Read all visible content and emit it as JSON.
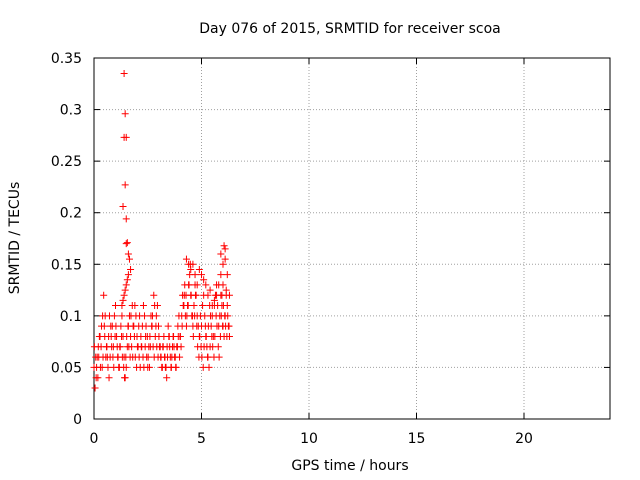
{
  "chart_data": {
    "type": "scatter",
    "title": "Day 076 of 2015, SRMTID for receiver scoa",
    "xlabel": "GPS time / hours",
    "ylabel": "SRMTID / TECUs",
    "xlim": [
      0,
      24
    ],
    "ylim": [
      0,
      0.35
    ],
    "xticks": [
      0,
      5,
      10,
      15,
      20
    ],
    "xtick_labels": [
      "0",
      "5",
      "10",
      "15",
      "20"
    ],
    "yticks": [
      0,
      0.05,
      0.1,
      0.15,
      0.2,
      0.25,
      0.3,
      0.35
    ],
    "ytick_labels": [
      "0",
      "0.05",
      "0.1",
      "0.15",
      "0.2",
      "0.25",
      "0.3",
      "0.35"
    ],
    "grid": true,
    "marker": "+",
    "series": [
      {
        "name": "SRMTID",
        "color": "#ff0000",
        "x": [
          0.0,
          0.05,
          0.1,
          0.15,
          0.2,
          0.25,
          0.3,
          0.35,
          0.4,
          0.45,
          0.5,
          0.55,
          0.6,
          0.65,
          0.7,
          0.75,
          0.8,
          0.85,
          0.9,
          0.95,
          1.0,
          1.05,
          1.1,
          1.15,
          1.2,
          1.25,
          1.3,
          1.35,
          1.4,
          1.45,
          1.5,
          1.55,
          1.6,
          1.65,
          1.7,
          1.75,
          1.8,
          1.85,
          1.9,
          1.95,
          2.0,
          2.05,
          2.1,
          2.15,
          2.2,
          2.25,
          2.3,
          2.35,
          2.4,
          2.45,
          2.5,
          2.55,
          2.6,
          2.65,
          2.7,
          2.75,
          2.8,
          2.85,
          2.9,
          2.95,
          3.0,
          3.05,
          3.1,
          3.15,
          3.2,
          3.25,
          3.3,
          3.35,
          3.4,
          3.45,
          3.5,
          3.55,
          3.6,
          3.65,
          3.7,
          3.75,
          3.8,
          3.85,
          3.9,
          3.95,
          4.0,
          4.05,
          4.1,
          4.15,
          4.2,
          4.25,
          4.3,
          4.35,
          4.4,
          4.45,
          4.5,
          4.55,
          4.6,
          4.65,
          4.7,
          4.75,
          4.8,
          4.85,
          4.9,
          4.95,
          5.0,
          5.05,
          5.1,
          5.15,
          5.2,
          5.25,
          5.3,
          5.35,
          5.4,
          5.45,
          5.5,
          5.55,
          5.6,
          5.65,
          5.7,
          5.75,
          5.8,
          5.85,
          5.9,
          5.95,
          6.0,
          6.05,
          6.1,
          6.15,
          6.2,
          6.25,
          6.3,
          0.02,
          0.08,
          0.12,
          0.18,
          0.22,
          0.28,
          0.33,
          0.38,
          0.42,
          0.48,
          0.52,
          0.58,
          0.62,
          0.68,
          0.72,
          0.78,
          0.82,
          0.88,
          0.92,
          0.98,
          1.02,
          1.08,
          1.12,
          1.18,
          1.22,
          1.28,
          1.32,
          1.38,
          1.42,
          1.48,
          1.52,
          1.58,
          1.62,
          1.68,
          1.72,
          1.78,
          1.82,
          1.88,
          1.92,
          1.98,
          2.02,
          2.08,
          2.12,
          2.18,
          2.22,
          2.28,
          2.32,
          2.38,
          2.42,
          2.48,
          2.52,
          2.58,
          2.62,
          2.68,
          2.72,
          2.78,
          2.82,
          2.88,
          2.92,
          2.98,
          3.02,
          3.08,
          3.12,
          3.18,
          3.22,
          3.28,
          3.32,
          3.38,
          3.42,
          3.48,
          3.52,
          3.58,
          3.62,
          3.68,
          3.72,
          3.78,
          3.82,
          3.88,
          3.92,
          3.98,
          4.02,
          4.08,
          4.12,
          4.18,
          4.22,
          4.28,
          4.32,
          4.38,
          4.42,
          4.48,
          4.52,
          4.58,
          4.62,
          4.68,
          4.72,
          4.78,
          4.82,
          4.88,
          4.92,
          4.98,
          5.02,
          5.08,
          5.12,
          5.18,
          5.22,
          5.28,
          5.32,
          5.38,
          5.42,
          5.48,
          5.52,
          5.58,
          5.62,
          5.68,
          5.72,
          5.78,
          5.82,
          5.88,
          5.92,
          5.98,
          6.02,
          6.08,
          6.12,
          6.18,
          6.22,
          6.28,
          1.4,
          1.45,
          1.4,
          1.5,
          1.45,
          1.35,
          1.5,
          1.55,
          1.5,
          1.6,
          1.65,
          1.7,
          1.6,
          1.55,
          1.5,
          1.45,
          1.4,
          1.35,
          1.3,
          4.3,
          4.4,
          4.5,
          4.6,
          4.7,
          4.8,
          4.9,
          5.0,
          5.1,
          5.2,
          5.3,
          5.4,
          5.5,
          5.6,
          5.7,
          5.8,
          5.9,
          6.0,
          6.1,
          6.2,
          6.3,
          5.9,
          6.05,
          6.1,
          6.0,
          6.15,
          5.95
        ],
        "y": [
          0.05,
          0.03,
          0.04,
          0.06,
          0.07,
          0.08,
          0.05,
          0.09,
          0.1,
          0.12,
          0.08,
          0.06,
          0.07,
          0.05,
          0.04,
          0.06,
          0.08,
          0.09,
          0.07,
          0.1,
          0.11,
          0.08,
          0.06,
          0.05,
          0.07,
          0.09,
          0.1,
          0.08,
          0.06,
          0.04,
          0.05,
          0.07,
          0.09,
          0.1,
          0.08,
          0.07,
          0.06,
          0.09,
          0.11,
          0.1,
          0.08,
          0.07,
          0.06,
          0.05,
          0.07,
          0.09,
          0.11,
          0.1,
          0.08,
          0.06,
          0.05,
          0.07,
          0.08,
          0.1,
          0.09,
          0.07,
          0.06,
          0.08,
          0.1,
          0.11,
          0.09,
          0.07,
          0.06,
          0.05,
          0.07,
          0.08,
          0.06,
          0.05,
          0.07,
          0.09,
          0.08,
          0.06,
          0.05,
          0.07,
          0.08,
          0.06,
          0.05,
          0.07,
          0.09,
          0.1,
          0.08,
          0.07,
          0.09,
          0.11,
          0.12,
          0.1,
          0.09,
          0.11,
          0.13,
          0.14,
          0.12,
          0.1,
          0.09,
          0.11,
          0.13,
          0.12,
          0.1,
          0.09,
          0.08,
          0.1,
          0.09,
          0.11,
          0.12,
          0.1,
          0.08,
          0.07,
          0.06,
          0.05,
          0.07,
          0.09,
          0.1,
          0.08,
          0.11,
          0.12,
          0.13,
          0.11,
          0.09,
          0.1,
          0.12,
          0.11,
          0.09,
          0.08,
          0.1,
          0.12,
          0.11,
          0.09,
          0.08,
          0.07,
          0.06,
          0.05,
          0.04,
          0.06,
          0.08,
          0.07,
          0.05,
          0.06,
          0.09,
          0.1,
          0.07,
          0.06,
          0.08,
          0.1,
          0.09,
          0.07,
          0.06,
          0.05,
          0.08,
          0.09,
          0.07,
          0.06,
          0.05,
          0.07,
          0.08,
          0.06,
          0.05,
          0.04,
          0.06,
          0.08,
          0.09,
          0.07,
          0.06,
          0.1,
          0.11,
          0.09,
          0.08,
          0.06,
          0.05,
          0.07,
          0.09,
          0.1,
          0.08,
          0.07,
          0.06,
          0.05,
          0.07,
          0.09,
          0.08,
          0.06,
          0.05,
          0.07,
          0.09,
          0.1,
          0.12,
          0.11,
          0.09,
          0.07,
          0.06,
          0.08,
          0.07,
          0.06,
          0.05,
          0.07,
          0.06,
          0.05,
          0.04,
          0.06,
          0.08,
          0.07,
          0.05,
          0.06,
          0.08,
          0.07,
          0.06,
          0.05,
          0.07,
          0.08,
          0.06,
          0.08,
          0.1,
          0.12,
          0.11,
          0.13,
          0.12,
          0.1,
          0.11,
          0.13,
          0.15,
          0.12,
          0.1,
          0.08,
          0.1,
          0.12,
          0.09,
          0.07,
          0.06,
          0.08,
          0.07,
          0.06,
          0.05,
          0.07,
          0.09,
          0.08,
          0.06,
          0.09,
          0.11,
          0.1,
          0.08,
          0.07,
          0.06,
          0.08,
          0.1,
          0.09,
          0.07,
          0.06,
          0.08,
          0.1,
          0.09,
          0.11,
          0.1,
          0.09,
          0.08,
          0.1,
          0.09,
          0.335,
          0.296,
          0.273,
          0.273,
          0.227,
          0.206,
          0.194,
          0.171,
          0.17,
          0.16,
          0.155,
          0.145,
          0.14,
          0.135,
          0.13,
          0.125,
          0.12,
          0.115,
          0.11,
          0.155,
          0.15,
          0.145,
          0.15,
          0.14,
          0.13,
          0.145,
          0.14,
          0.135,
          0.13,
          0.12,
          0.125,
          0.11,
          0.115,
          0.12,
          0.13,
          0.14,
          0.15,
          0.165,
          0.14,
          0.12,
          0.16,
          0.168,
          0.155,
          0.13,
          0.125,
          0.12
        ]
      }
    ]
  }
}
